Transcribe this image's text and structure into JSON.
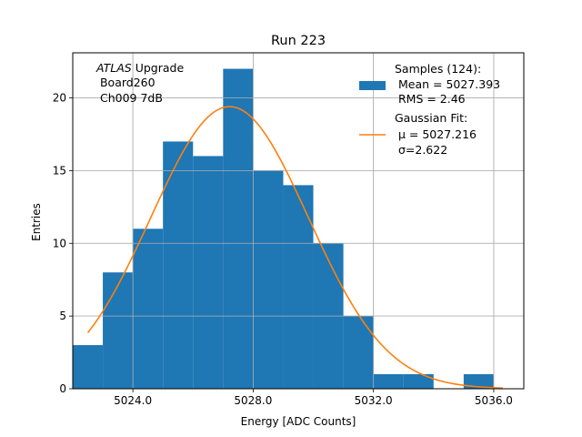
{
  "chart_data": {
    "type": "histogram",
    "title": "Run 223",
    "xlabel": "Energy [ADC Counts]",
    "ylabel": "Entries",
    "xlim": [
      2.0,
      17.0
    ],
    "ylim": [
      0,
      23.1
    ],
    "grid": true,
    "legend_position": "upper-right",
    "colors": {
      "bars": "#1f77b4",
      "fit": "#ff7f0e",
      "grid": "#b0b0b0"
    },
    "xticks": [
      {
        "value": 4.0,
        "label": "5024.0"
      },
      {
        "value": 8.0,
        "label": "5028.0"
      },
      {
        "value": 12.0,
        "label": "5032.0"
      },
      {
        "value": 16.0,
        "label": "5036.0"
      }
    ],
    "yticks": [
      {
        "value": 0,
        "label": "0"
      },
      {
        "value": 5,
        "label": "5"
      },
      {
        "value": 10,
        "label": "10"
      },
      {
        "value": 15,
        "label": "15"
      },
      {
        "value": 20,
        "label": "20"
      }
    ],
    "bins": [
      {
        "x0": 2,
        "x1": 3,
        "count": 3
      },
      {
        "x0": 3,
        "x1": 4,
        "count": 8
      },
      {
        "x0": 4,
        "x1": 5,
        "count": 11
      },
      {
        "x0": 5,
        "x1": 6,
        "count": 17
      },
      {
        "x0": 6,
        "x1": 7,
        "count": 16
      },
      {
        "x0": 7,
        "x1": 8,
        "count": 22
      },
      {
        "x0": 8,
        "x1": 9,
        "count": 15
      },
      {
        "x0": 9,
        "x1": 10,
        "count": 14
      },
      {
        "x0": 10,
        "x1": 11,
        "count": 10
      },
      {
        "x0": 11,
        "x1": 12,
        "count": 5
      },
      {
        "x0": 12,
        "x1": 13,
        "count": 1
      },
      {
        "x0": 13,
        "x1": 14,
        "count": 1
      },
      {
        "x0": 14,
        "x1": 15,
        "count": 0
      },
      {
        "x0": 15,
        "x1": 16,
        "count": 1
      }
    ],
    "fit": {
      "mu_axis": 7.216,
      "sigma": 2.622,
      "amplitude": 19.4,
      "x_range": [
        2.5,
        16.3
      ]
    },
    "annotation": {
      "italic": "ATLAS",
      "rest": " Upgrade",
      "line2": " Board260",
      "line3": " Ch009 7dB"
    },
    "legend": {
      "samples": [
        "Samples (124):",
        " Mean = 5027.393",
        " RMS = 2.46"
      ],
      "fit": [
        "Gaussian Fit:",
        " μ = 5027.216",
        " σ=2.622"
      ]
    }
  }
}
